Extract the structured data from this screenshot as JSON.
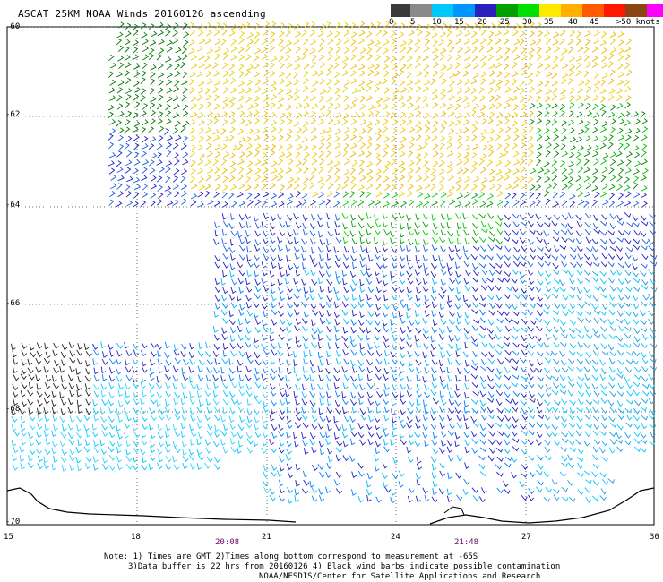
{
  "title": "ASCAT 25KM NOAA Winds 20160126 ascending",
  "colorbar": {
    "colors": [
      "#3a3a3a",
      "#8a8a8a",
      "#00c8ff",
      "#0096ff",
      "#2a1fbf",
      "#00a000",
      "#00e000",
      "#ffe800",
      "#ffb000",
      "#ff5a00",
      "#ff1800",
      "#8b4513",
      "#ff00ff",
      "#9400d3"
    ],
    "labels": [
      "0",
      "5",
      "10",
      "15",
      "20",
      "25",
      "30",
      "35",
      "40",
      "45",
      ">50 knots"
    ]
  },
  "axes": {
    "lat_labels": [
      "-60",
      "-62",
      "-64",
      "-66",
      "-68",
      "-70"
    ],
    "lon_labels": [
      "15",
      "18",
      "21",
      "24",
      "27",
      "30"
    ]
  },
  "times": [
    "20:08",
    "21:48"
  ],
  "notes": [
    "Note: 1) Times are GMT 2)Times along bottom correspond to measurement at -65S",
    "3)Data buffer is 22 hrs from 20160126 4) Black wind barbs indicate possible contamination",
    "NOAA/NESDIS/Center for Satellite Applications and Research"
  ]
}
